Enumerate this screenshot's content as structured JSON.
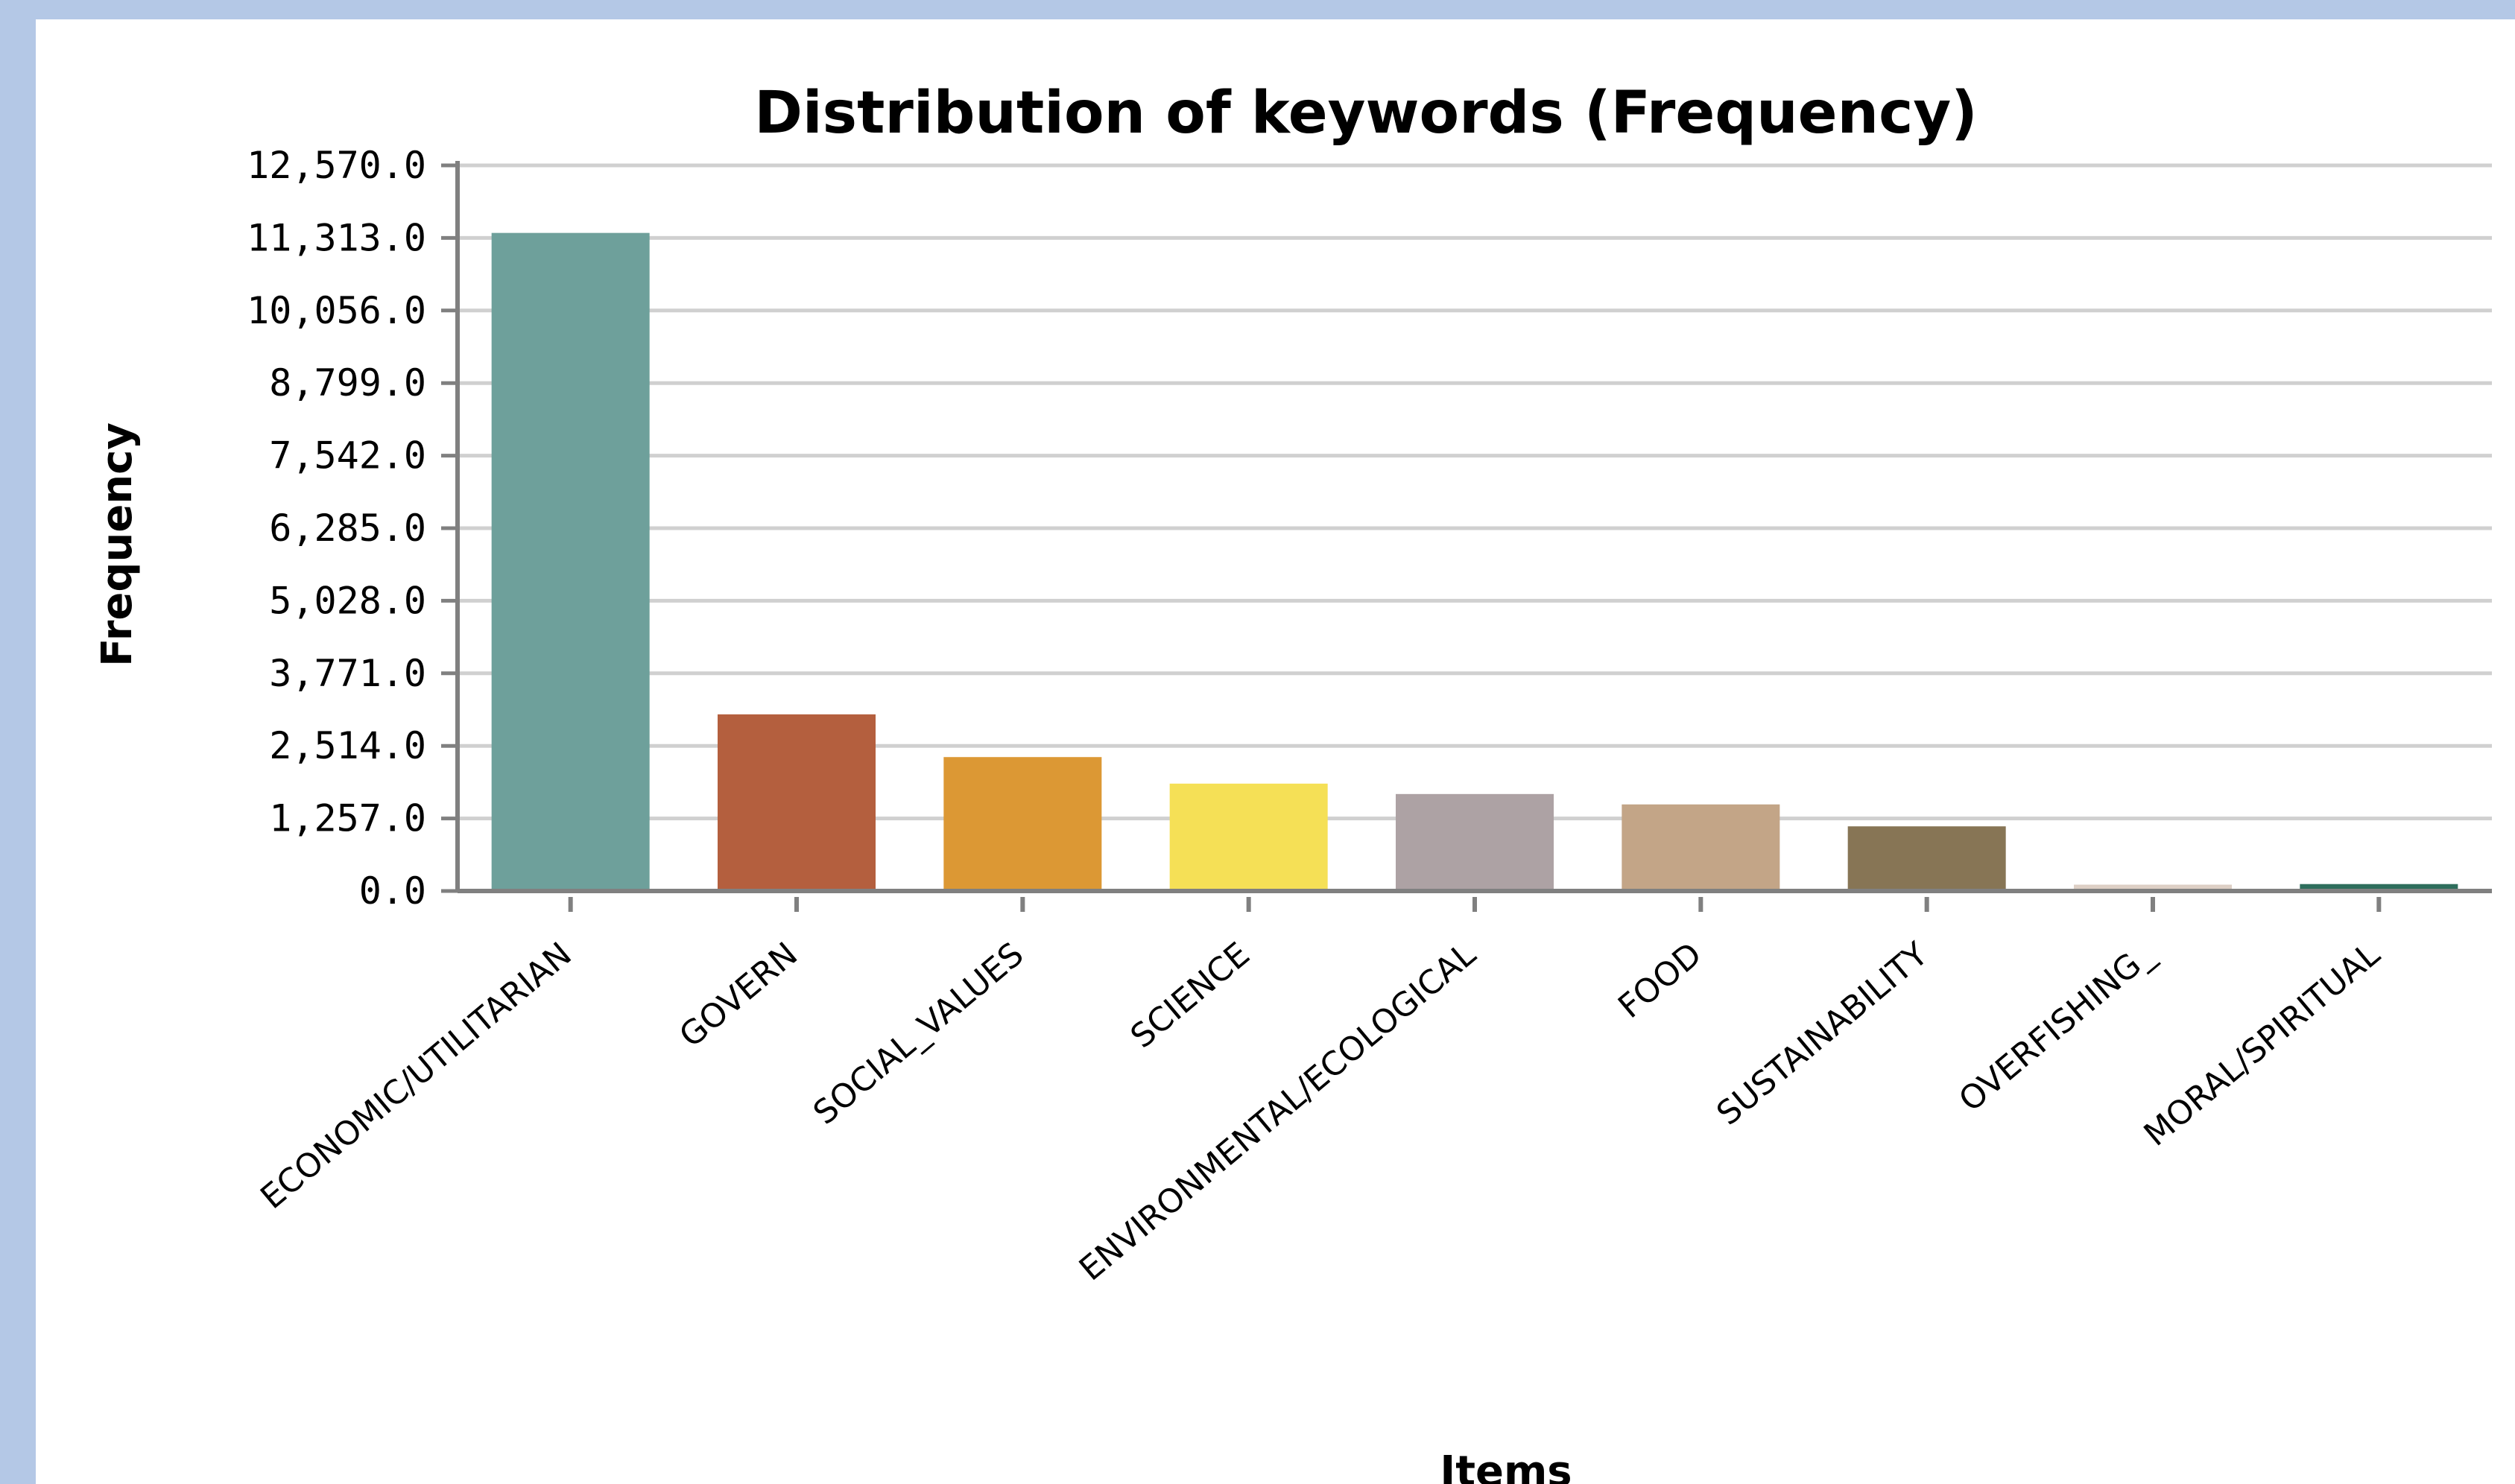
{
  "chart_data": {
    "type": "bar",
    "title": "Distribution of keywords (Frequency)",
    "xlabel": "Items",
    "ylabel": "Frequency",
    "ylim": [
      0,
      12570
    ],
    "yticks": [
      "0.0",
      "1,257.0",
      "2,514.0",
      "3,771.0",
      "5,028.0",
      "6,285.0",
      "7,542.0",
      "8,799.0",
      "10,056.0",
      "11,313.0",
      "12,570.0"
    ],
    "categories": [
      "ECONOMIC/UTILITARIAN",
      "GOVERN",
      "SOCIAL_VALUES",
      "SCIENCE",
      "ENVIRONMENTAL/ECOLOGICAL",
      "FOOD",
      "SUSTAINABILITY",
      "OVERFISHING_",
      "MORAL/SPIRITUAL"
    ],
    "values": [
      11400,
      3060,
      2320,
      1860,
      1680,
      1500,
      1120,
      110,
      120
    ],
    "colors": [
      "#6ea09b",
      "#b45f3e",
      "#dc9834",
      "#f5e056",
      "#ada2a4",
      "#c3a587",
      "#877555",
      "#ddcfc5",
      "#2e6e5c"
    ],
    "grid": true,
    "legend": "none"
  }
}
